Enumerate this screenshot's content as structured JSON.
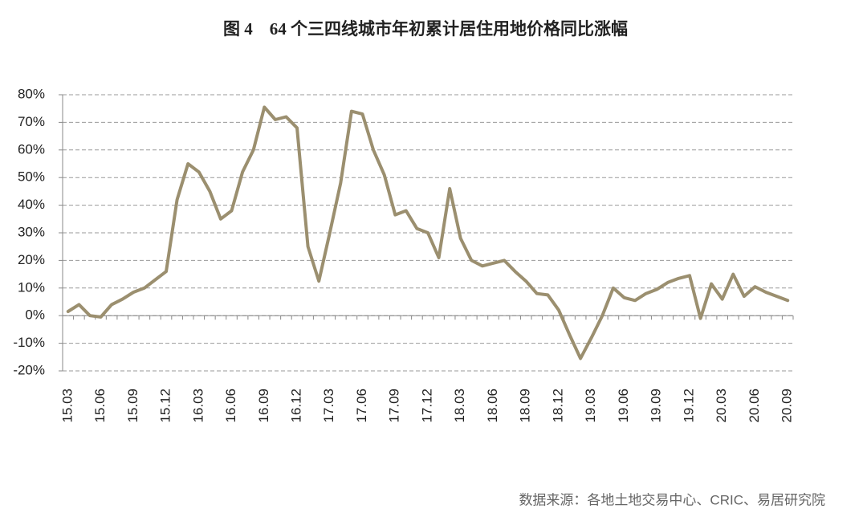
{
  "chart_data": {
    "type": "line",
    "title": "图 4　64 个三四线城市年初累计居住用地价格同比涨幅",
    "source": "数据来源：各地土地交易中心、CRIC、易居研究院",
    "categories": [
      "15.03",
      null,
      null,
      "15.06",
      null,
      null,
      "15.09",
      null,
      null,
      "15.12",
      null,
      null,
      "16.03",
      null,
      null,
      "16.06",
      null,
      null,
      "16.09",
      null,
      null,
      "16.12",
      null,
      null,
      "17.03",
      null,
      null,
      "17.06",
      null,
      null,
      "17.09",
      null,
      null,
      "17.12",
      null,
      null,
      "18.03",
      null,
      null,
      "18.06",
      null,
      null,
      "18.09",
      null,
      null,
      "18.12",
      null,
      null,
      "19.03",
      null,
      null,
      "19.06",
      null,
      null,
      "19.09",
      null,
      null,
      "19.12",
      null,
      null,
      "20.03",
      null,
      null,
      "20.06",
      null,
      null,
      "20.09"
    ],
    "series": [
      {
        "name": "居住用地价格同比涨幅",
        "color": "#9b8f6f",
        "values": [
          1.5,
          4,
          0,
          -0.5,
          4,
          6,
          8.5,
          10,
          13,
          16,
          42,
          55,
          52,
          45,
          35,
          38,
          52,
          60,
          75.5,
          71,
          72,
          68,
          25,
          12.5,
          30,
          48,
          74,
          73,
          60,
          51,
          36.5,
          38,
          31.5,
          30,
          21,
          46,
          28,
          20,
          18,
          19,
          20,
          16,
          12.5,
          8,
          7.5,
          2,
          -7,
          -15.5,
          -8,
          0,
          10,
          6.5,
          5.5,
          8,
          9.5,
          12,
          13.5,
          14.5,
          -1,
          11.5,
          6,
          15,
          7,
          10.5,
          8.5,
          7,
          5.5
        ]
      }
    ],
    "ylim": [
      -20,
      80
    ],
    "yticks": [
      {
        "value": -20,
        "label": "-20%"
      },
      {
        "value": -10,
        "label": "-10%"
      },
      {
        "value": 0,
        "label": "0%"
      },
      {
        "value": 10,
        "label": "10%"
      },
      {
        "value": 20,
        "label": "20%"
      },
      {
        "value": 30,
        "label": "30%"
      },
      {
        "value": 40,
        "label": "40%"
      },
      {
        "value": 50,
        "label": "50%"
      },
      {
        "value": 60,
        "label": "60%"
      },
      {
        "value": 70,
        "label": "70%"
      },
      {
        "value": 80,
        "label": "80%"
      }
    ],
    "grid": true
  }
}
